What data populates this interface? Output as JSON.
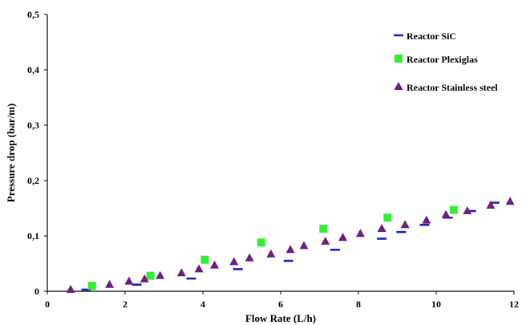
{
  "chart_data": {
    "type": "scatter",
    "xlabel": "Flow Rate (L/h)",
    "ylabel": "Pressure drop (bar/m)",
    "xlim": [
      0,
      12
    ],
    "ylim": [
      0,
      0.5
    ],
    "x_ticks": [
      "0",
      "2",
      "4",
      "6",
      "8",
      "10",
      "12"
    ],
    "y_ticks": [
      "0",
      "0,1",
      "0,2",
      "0,3",
      "0,4",
      "0,5"
    ],
    "grid": false,
    "legend_position": "top-right",
    "series": [
      {
        "name": "Reactor SiC",
        "marker": "dash",
        "color": "#1f1fbf",
        "points": [
          [
            1.0,
            0.003
          ],
          [
            2.3,
            0.012
          ],
          [
            3.7,
            0.023
          ],
          [
            4.9,
            0.04
          ],
          [
            6.2,
            0.055
          ],
          [
            7.4,
            0.075
          ],
          [
            8.6,
            0.095
          ],
          [
            9.1,
            0.107
          ],
          [
            9.7,
            0.12
          ],
          [
            10.3,
            0.133
          ],
          [
            10.9,
            0.145
          ],
          [
            11.5,
            0.16
          ]
        ]
      },
      {
        "name": "Reactor Plexiglas",
        "marker": "square",
        "color": "#33ee33",
        "points": [
          [
            1.15,
            0.01
          ],
          [
            2.65,
            0.028
          ],
          [
            4.05,
            0.057
          ],
          [
            5.5,
            0.088
          ],
          [
            7.1,
            0.113
          ],
          [
            8.75,
            0.133
          ],
          [
            10.45,
            0.147
          ]
        ]
      },
      {
        "name": "Reactor Stainless steel",
        "marker": "triangle",
        "color": "#6b1f7a",
        "points": [
          [
            0.6,
            0.003
          ],
          [
            1.6,
            0.012
          ],
          [
            2.1,
            0.018
          ],
          [
            2.5,
            0.022
          ],
          [
            2.9,
            0.028
          ],
          [
            3.45,
            0.033
          ],
          [
            3.9,
            0.04
          ],
          [
            4.3,
            0.047
          ],
          [
            4.8,
            0.053
          ],
          [
            5.2,
            0.06
          ],
          [
            5.75,
            0.067
          ],
          [
            6.25,
            0.075
          ],
          [
            6.6,
            0.082
          ],
          [
            7.15,
            0.09
          ],
          [
            7.6,
            0.097
          ],
          [
            8.05,
            0.104
          ],
          [
            8.6,
            0.113
          ],
          [
            9.2,
            0.12
          ],
          [
            9.75,
            0.128
          ],
          [
            10.25,
            0.138
          ],
          [
            10.8,
            0.145
          ],
          [
            11.4,
            0.155
          ],
          [
            11.9,
            0.162
          ]
        ]
      }
    ]
  }
}
